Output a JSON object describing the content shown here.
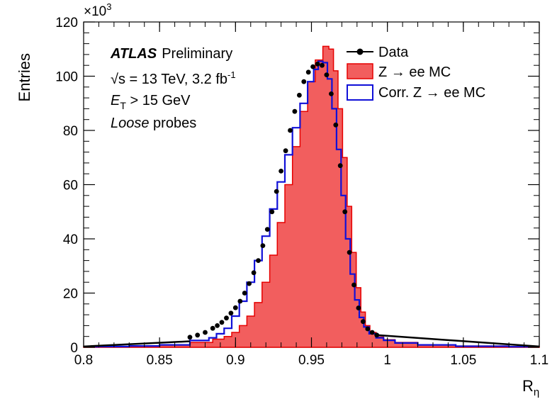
{
  "chart_data": {
    "type": "area",
    "title": "",
    "xlabel": "R",
    "xlabel_sub": "η",
    "ylabel": "Entries",
    "y_multiplier": "×10",
    "y_multiplier_exp": "3",
    "xlim": [
      0.8,
      1.1
    ],
    "ylim": [
      0,
      120
    ],
    "x_ticks": [
      0.8,
      0.85,
      0.9,
      0.95,
      1,
      1.05,
      1.1
    ],
    "x_tick_labels": [
      "0.8",
      "0.85",
      "0.9",
      "0.95",
      "1",
      "1.05",
      "1.1"
    ],
    "y_ticks": [
      0,
      20,
      40,
      60,
      80,
      100,
      120
    ],
    "y_tick_labels": [
      "0",
      "20",
      "40",
      "60",
      "80",
      "100",
      "120"
    ],
    "grid": false,
    "annotations": {
      "atlas": "ATLAS",
      "preliminary": "Preliminary",
      "energy_sqrt": "√",
      "energy_rest": "s = 13 TeV, 3.2 fb",
      "energy_sup": "-1",
      "et_symbol": "E",
      "et_sub": "T",
      "et_rest": " > 15 GeV",
      "probe_italic": "Loose",
      "probe_rest": " probes"
    },
    "legend_position": "top-right",
    "series": [
      {
        "name": "Data",
        "style": "markers",
        "color": "#000000",
        "x": [
          0.87,
          0.875,
          0.88,
          0.885,
          0.888,
          0.891,
          0.894,
          0.897,
          0.9,
          0.903,
          0.906,
          0.909,
          0.912,
          0.915,
          0.918,
          0.921,
          0.924,
          0.927,
          0.93,
          0.933,
          0.936,
          0.939,
          0.942,
          0.945,
          0.948,
          0.951,
          0.954,
          0.957,
          0.96,
          0.963,
          0.966,
          0.969,
          0.972,
          0.975,
          0.978,
          0.981,
          0.984,
          0.987,
          0.99,
          0.993
        ],
        "y": [
          3.7,
          4.5,
          5.5,
          7.0,
          8.0,
          9.2,
          10.8,
          12.6,
          14.6,
          17.0,
          20.0,
          23.5,
          27.5,
          32.0,
          37.5,
          43.5,
          50.0,
          57.5,
          65.0,
          72.5,
          80.0,
          87.0,
          93.0,
          98.0,
          101.5,
          103.5,
          104.5,
          104.0,
          100.5,
          93.5,
          82.0,
          67.0,
          50.0,
          35.0,
          23.0,
          14.5,
          9.5,
          6.8,
          5.5,
          4.5
        ]
      },
      {
        "name": "Z → ee MC",
        "style": "filled-histogram",
        "color": "#f25e5e",
        "edge": "#e60000",
        "x": [
          0.8,
          0.82,
          0.84,
          0.86,
          0.88,
          0.89,
          0.895,
          0.9,
          0.905,
          0.91,
          0.915,
          0.92,
          0.925,
          0.93,
          0.935,
          0.94,
          0.945,
          0.95,
          0.955,
          0.96,
          0.963,
          0.966,
          0.969,
          0.972,
          0.975,
          0.978,
          0.981,
          0.984,
          0.987,
          0.99,
          0.995,
          1.0,
          1.01,
          1.03,
          1.06,
          1.1
        ],
        "y": [
          0.2,
          0.3,
          0.5,
          0.9,
          1.8,
          3.0,
          4.0,
          5.5,
          8.0,
          11.5,
          16.5,
          24.0,
          34.0,
          46.0,
          60.0,
          74.0,
          87.0,
          98.0,
          106.0,
          111.0,
          110.0,
          102.0,
          88.0,
          70.0,
          52.0,
          35.0,
          22.0,
          13.0,
          8.0,
          5.5,
          3.8,
          2.8,
          1.8,
          1.0,
          0.5,
          0.3
        ]
      },
      {
        "name": "Corr. Z → ee MC",
        "style": "step-line",
        "color": "#1010d8",
        "x": [
          0.8,
          0.82,
          0.84,
          0.86,
          0.88,
          0.885,
          0.89,
          0.895,
          0.9,
          0.905,
          0.91,
          0.915,
          0.92,
          0.925,
          0.93,
          0.935,
          0.94,
          0.945,
          0.95,
          0.953,
          0.956,
          0.959,
          0.962,
          0.965,
          0.968,
          0.971,
          0.974,
          0.977,
          0.98,
          0.983,
          0.986,
          0.99,
          0.995,
          1.0,
          1.01,
          1.03,
          1.06,
          1.1
        ],
        "y": [
          0.2,
          0.3,
          0.5,
          0.9,
          2.5,
          3.5,
          5.0,
          7.0,
          11.5,
          17.0,
          24.0,
          32.0,
          41.0,
          51.0,
          61.0,
          71.0,
          81.0,
          90.0,
          98.0,
          102.5,
          105.5,
          105.0,
          99.0,
          88.0,
          73.0,
          56.0,
          40.0,
          27.0,
          17.5,
          11.0,
          7.5,
          5.0,
          3.5,
          2.6,
          1.6,
          0.9,
          0.4,
          0.2
        ]
      }
    ]
  }
}
